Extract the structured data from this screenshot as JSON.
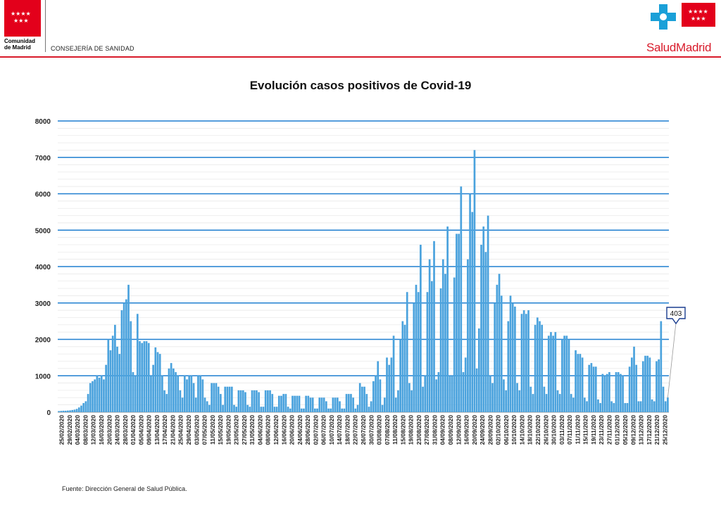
{
  "header": {
    "left_logo_name": "Comunidad de Madrid",
    "left_logo_line1": "Comunidad",
    "left_logo_line2": "de Madrid",
    "department": "CONSEJERÍA DE SANIDAD",
    "right_logo_text": "SaludMadrid",
    "brand_color": "#e3001b",
    "salud_blue": "#1aa0d8"
  },
  "footer": {
    "source": "Fuente: Dirección General de Salud Pública."
  },
  "chart_data": {
    "type": "bar",
    "title": "Evolución casos positivos de Covid-19",
    "xlabel": "",
    "ylabel": "",
    "ylim": [
      0,
      8000
    ],
    "yticks": [
      0,
      1000,
      2000,
      3000,
      4000,
      5000,
      6000,
      7000,
      8000
    ],
    "grid": true,
    "bar_color": "#4aa2dd",
    "grid_color": "#1f7fd0",
    "x_start": "25/02/2020",
    "x_end": "28/12/2020",
    "tick_labels": [
      "25/02/2020",
      "29/02/2020",
      "04/03/2020",
      "08/03/2020",
      "12/03/2020",
      "16/03/2020",
      "20/03/2020",
      "24/03/2020",
      "28/03/2020",
      "01/04/2020",
      "05/04/2020",
      "09/04/2020",
      "13/04/2020",
      "17/04/2020",
      "21/04/2020",
      "25/04/2020",
      "29/04/2020",
      "03/05/2020",
      "07/05/2020",
      "11/05/2020",
      "15/05/2020",
      "19/05/2020",
      "23/05/2020",
      "27/05/2020",
      "31/05/2020",
      "04/06/2020",
      "08/06/2020",
      "12/06/2020",
      "16/06/2020",
      "20/06/2020",
      "24/06/2020",
      "28/06/2020",
      "02/07/2020",
      "06/07/2020",
      "10/07/2020",
      "14/07/2020",
      "18/07/2020",
      "22/07/2020",
      "26/07/2020",
      "30/07/2020",
      "03/08/2020",
      "07/08/2020",
      "11/08/2020",
      "15/08/2020",
      "19/08/2020",
      "23/08/2020",
      "27/08/2020",
      "31/08/2020",
      "04/09/2020",
      "08/09/2020",
      "12/09/2020",
      "16/09/2020",
      "20/09/2020",
      "24/09/2020",
      "28/09/2020",
      "02/10/2020",
      "06/10/2020",
      "10/10/2020",
      "14/10/2020",
      "18/10/2020",
      "22/10/2020",
      "26/10/2020",
      "30/10/2020",
      "03/11/2020",
      "07/11/2020",
      "11/11/2020",
      "15/11/2020",
      "19/11/2020",
      "23/11/2020",
      "27/11/2020",
      "01/12/2020",
      "05/12/2020",
      "09/12/2020",
      "13/12/2020",
      "17/12/2020",
      "21/12/2020",
      "25/12/2020"
    ],
    "values": [
      30,
      35,
      40,
      40,
      45,
      50,
      60,
      70,
      90,
      130,
      180,
      250,
      300,
      500,
      800,
      850,
      900,
      1000,
      950,
      1000,
      900,
      1300,
      2000,
      1700,
      2100,
      2400,
      1800,
      1600,
      2800,
      3000,
      3100,
      3500,
      2500,
      1100,
      1000,
      2700,
      1950,
      1900,
      1950,
      1950,
      1900,
      1000,
      1300,
      1780,
      1650,
      1600,
      1000,
      600,
      500,
      1200,
      1350,
      1200,
      1100,
      1000,
      600,
      400,
      1000,
      900,
      1000,
      1000,
      800,
      400,
      1000,
      1000,
      900,
      400,
      300,
      200,
      800,
      800,
      800,
      700,
      500,
      200,
      700,
      700,
      700,
      700,
      200,
      150,
      600,
      600,
      600,
      550,
      200,
      150,
      600,
      600,
      600,
      550,
      150,
      150,
      600,
      600,
      600,
      500,
      150,
      150,
      450,
      450,
      500,
      500,
      150,
      100,
      450,
      450,
      450,
      450,
      100,
      100,
      450,
      450,
      400,
      400,
      100,
      100,
      400,
      400,
      400,
      300,
      100,
      100,
      400,
      400,
      400,
      300,
      100,
      100,
      500,
      500,
      500,
      400,
      100,
      200,
      800,
      700,
      700,
      500,
      150,
      300,
      850,
      1000,
      1400,
      900,
      200,
      400,
      1500,
      1300,
      1500,
      2100,
      400,
      600,
      2000,
      2500,
      2400,
      3300,
      800,
      600,
      3000,
      3500,
      3300,
      4600,
      700,
      1000,
      3300,
      4200,
      3600,
      4700,
      900,
      1100,
      3400,
      4200,
      3800,
      5100,
      1000,
      1000,
      3700,
      4900,
      4900,
      6200,
      1100,
      1500,
      4200,
      6000,
      5500,
      7200,
      1200,
      2300,
      4600,
      5100,
      4400,
      5400,
      1000,
      800,
      3000,
      3500,
      3800,
      3200,
      900,
      600,
      2500,
      3200,
      3000,
      2900,
      800,
      600,
      2700,
      2800,
      2700,
      2800,
      700,
      500,
      2400,
      2600,
      2500,
      2400,
      700,
      500,
      2100,
      2200,
      2100,
      2200,
      600,
      500,
      2000,
      2100,
      2100,
      2000,
      500,
      400,
      1700,
      1600,
      1600,
      1500,
      400,
      300,
      1300,
      1350,
      1250,
      1250,
      350,
      250,
      1050,
      1000,
      1050,
      1100,
      300,
      250,
      1100,
      1100,
      1050,
      1000,
      250,
      250,
      1250,
      1500,
      1800,
      1300,
      300,
      300,
      1400,
      1550,
      1550,
      1500,
      350,
      300,
      1400,
      1450,
      2500,
      700,
      300,
      403
    ],
    "annotations": [
      {
        "text": "403",
        "x": "28/12/2020",
        "y": 403
      }
    ]
  }
}
